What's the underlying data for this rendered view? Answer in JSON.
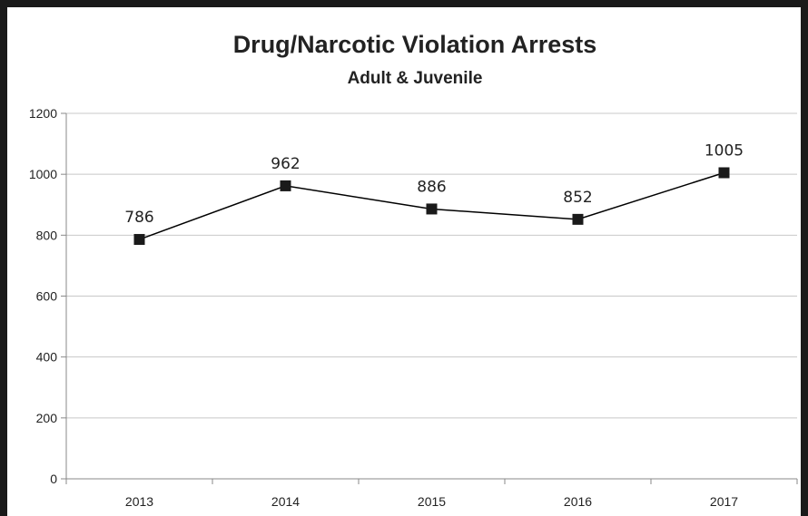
{
  "chart_data": {
    "type": "line",
    "title": "Drug/Narcotic Violation Arrests",
    "subtitle": "Adult & Juvenile",
    "xlabel": "",
    "ylabel": "",
    "categories": [
      "2013",
      "2014",
      "2015",
      "2016",
      "2017"
    ],
    "series": [
      {
        "values": [
          786,
          962,
          886,
          852,
          1005
        ]
      }
    ],
    "data_labels": [
      "786",
      "962",
      "886",
      "852",
      "1005"
    ],
    "ylim": [
      0,
      1200
    ],
    "yticks": [
      "0",
      "200",
      "400",
      "600",
      "800",
      "1000",
      "1200"
    ],
    "grid": true,
    "legend": "none",
    "colors": {
      "line": "#000000",
      "marker": "#1a1a1a",
      "grid": "#c8c8c8",
      "frame": "#1a1a1a"
    }
  }
}
